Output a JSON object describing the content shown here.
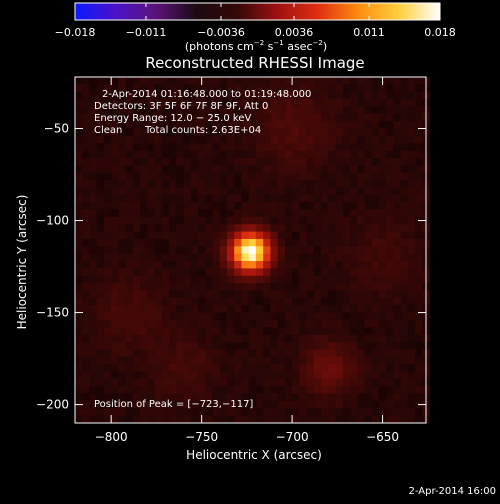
{
  "chart_data": {
    "type": "heatmap",
    "title": "Reconstructed RHESSI Image",
    "xlabel": "Heliocentric X (arcsec)",
    "ylabel": "Heliocentric Y (arcsec)",
    "xlim": [
      -820,
      -626
    ],
    "ylim": [
      -210,
      -22
    ],
    "x_ticks": [
      -800,
      -750,
      -700,
      -650
    ],
    "y_ticks": [
      -50,
      -100,
      -150,
      -200
    ],
    "x_tick_labels": [
      "−800",
      "−750",
      "−700",
      "−650"
    ],
    "y_tick_labels": [
      "−50",
      "−100",
      "−150",
      "−200"
    ],
    "colorbar": {
      "min": -0.018,
      "max": 0.018,
      "ticks": [
        -0.018,
        -0.011,
        -0.0036,
        0.0036,
        0.011,
        0.018
      ],
      "tick_labels": [
        "−0.018",
        "−0.011",
        "−0.0036",
        "0.0036",
        "0.011",
        "0.018"
      ],
      "unit_label": "(photons cm⁻² s⁻¹ asec⁻²)",
      "unit_parts": {
        "a": "(photons cm",
        "a_sup": "−2",
        "b": " s",
        "b_sup": "−1",
        "c": " asec",
        "c_sup": "−2",
        "d": ")"
      },
      "colors": [
        "#0a1aff",
        "#4b12c8",
        "#5a1478",
        "#1a0a12",
        "#350808",
        "#a01010",
        "#e03010",
        "#ff8c10",
        "#ffd040",
        "#ffffff"
      ]
    },
    "sources": [
      {
        "x": -723,
        "y": -117,
        "peak": 0.018,
        "sigma": 7
      },
      {
        "x": -680,
        "y": -180,
        "peak": 0.0022,
        "sigma": 10
      },
      {
        "x": -700,
        "y": -50,
        "peak": 0.0012,
        "sigma": 16
      },
      {
        "x": -790,
        "y": -150,
        "peak": 0.001,
        "sigma": 14
      },
      {
        "x": -760,
        "y": -180,
        "peak": 0.001,
        "sigma": 12
      },
      {
        "x": -650,
        "y": -120,
        "peak": 0.0008,
        "sigma": 14
      }
    ],
    "annotations": {
      "time_range": "2-Apr-2014 01:16:48.000 to 01:19:48.000",
      "detectors": "Detectors: 3F 5F 6F 7F 8F 9F, Att 0",
      "energy": "Energy Range: 12.0 − 25.0 keV",
      "algorithm": "Clean",
      "counts": "Total counts: 2.63E+04",
      "peak": "Position of Peak = [−723,−117]"
    },
    "timestamp": "2-Apr-2014 16:00"
  }
}
